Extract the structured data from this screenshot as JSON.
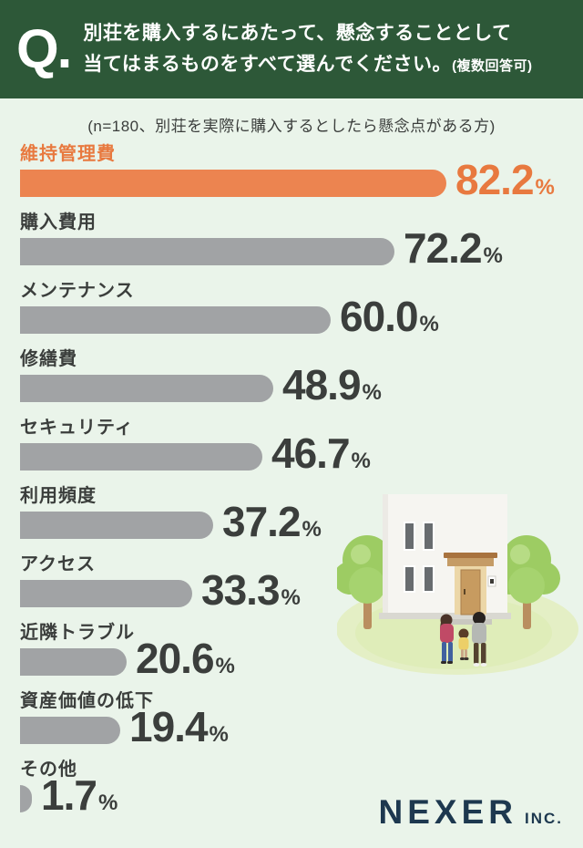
{
  "header": {
    "q_label": "Q.",
    "question_line1": "別荘を購入するにあたって、懸念することとして",
    "question_line2": "当てはまるものをすべて選んでください。",
    "question_note": "(複数回答可)"
  },
  "subtitle": "(n=180、別荘を実際に購入するとしたら懸念点がある方)",
  "chart_data": {
    "type": "bar",
    "orientation": "horizontal",
    "title": "別荘を購入するにあたって、懸念することとして当てはまるものをすべて選んでください。(複数回答可)",
    "subtitle": "(n=180、別荘を実際に購入するとしたら懸念点がある方)",
    "n": 180,
    "unit": "%",
    "xlim": [
      0,
      100
    ],
    "categories": [
      "維持管理費",
      "購入費用",
      "メンテナンス",
      "修繕費",
      "セキュリティ",
      "利用頻度",
      "アクセス",
      "近隣トラブル",
      "資産価値の低下",
      "その他"
    ],
    "values": [
      82.2,
      72.2,
      60.0,
      48.9,
      46.7,
      37.2,
      33.3,
      20.6,
      19.4,
      1.7
    ],
    "highlight_index": 0,
    "legend": null,
    "grid": false,
    "colors": {
      "highlight_bar": "#ec8450",
      "bar": "#a1a3a5",
      "highlight_text": "#e8793f",
      "text": "#3b3e3c",
      "header_bg": "#2d5838",
      "background": "#eaf4ea"
    }
  },
  "footer": {
    "logo_main": "NEXER",
    "logo_suffix": "INC.",
    "logo_color": "#1d384f"
  }
}
